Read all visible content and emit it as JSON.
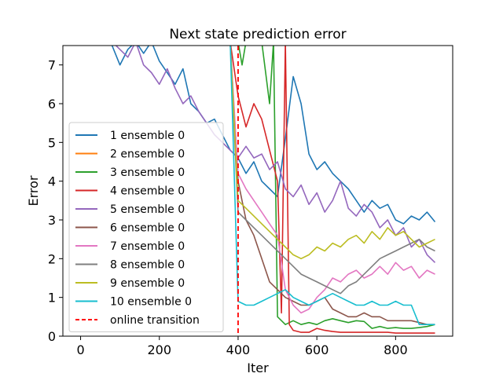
{
  "chart_data": {
    "type": "line",
    "title": "Next state prediction error",
    "xlabel": "Iter",
    "ylabel": "Error",
    "xlim": [
      -45,
      945
    ],
    "ylim": [
      0,
      7.5
    ],
    "xticks": [
      0,
      200,
      400,
      600,
      800
    ],
    "yticks": [
      0,
      1,
      2,
      3,
      4,
      5,
      6,
      7
    ],
    "grid": false,
    "legend_position": "left",
    "series": [
      {
        "name": "1 ensemble 0",
        "color": "#1f77b4",
        "x": [
          0,
          20,
          40,
          60,
          80,
          100,
          120,
          140,
          160,
          180,
          200,
          220,
          240,
          260,
          280,
          300,
          320,
          340,
          360,
          380,
          400,
          420,
          440,
          460,
          480,
          500,
          520,
          540,
          560,
          580,
          600,
          620,
          640,
          660,
          680,
          700,
          720,
          740,
          760,
          780,
          800,
          820,
          840,
          860,
          880,
          900
        ],
        "y": [
          7.6,
          7.6,
          7.6,
          7.6,
          7.5,
          7.0,
          7.4,
          7.6,
          7.3,
          7.6,
          7.1,
          6.8,
          6.5,
          6.9,
          6.0,
          5.8,
          5.5,
          5.6,
          5.2,
          4.8,
          4.6,
          4.2,
          4.5,
          4.0,
          3.8,
          3.6,
          5.1,
          6.7,
          6.0,
          4.7,
          4.3,
          4.5,
          4.2,
          4.0,
          3.8,
          3.5,
          3.2,
          3.5,
          3.3,
          3.4,
          3.0,
          2.9,
          3.1,
          3.0,
          3.2,
          2.95
        ]
      },
      {
        "name": "2 ensemble 0",
        "color": "#ff7f0e",
        "x": [
          0,
          20,
          40,
          60,
          80,
          100,
          120,
          140,
          160,
          180,
          200,
          220,
          240,
          260,
          280,
          300,
          320,
          340,
          360,
          380,
          400,
          420,
          440,
          460,
          480,
          500,
          520,
          540,
          560,
          580,
          600,
          620,
          640,
          660,
          680,
          700,
          720,
          740,
          760,
          780,
          800,
          820,
          840,
          860,
          880,
          900
        ],
        "y": [
          7.6,
          7.6,
          7.6,
          7.6,
          7.6,
          7.6,
          7.6,
          7.6,
          7.6,
          7.6,
          7.6,
          7.6,
          7.6,
          7.6,
          7.6,
          7.6,
          7.6,
          7.6,
          7.6,
          7.6,
          7.6,
          7.6,
          7.6,
          7.6,
          7.6,
          7.6,
          7.6,
          7.6,
          7.6,
          7.6,
          7.6,
          7.6,
          7.6,
          7.6,
          7.6,
          7.6,
          7.6,
          7.6,
          7.6,
          7.6,
          7.6,
          7.6,
          7.6,
          7.6,
          7.6,
          7.6
        ]
      },
      {
        "name": "3 ensemble 0",
        "color": "#2ca02c",
        "x": [
          0,
          20,
          40,
          60,
          80,
          100,
          120,
          140,
          160,
          180,
          200,
          220,
          240,
          260,
          280,
          300,
          320,
          340,
          360,
          380,
          400,
          410,
          420,
          440,
          460,
          470,
          480,
          490,
          500,
          520,
          540,
          560,
          580,
          600,
          620,
          640,
          660,
          680,
          700,
          720,
          740,
          760,
          780,
          800,
          820,
          840,
          860,
          880,
          900
        ],
        "y": [
          7.6,
          7.6,
          7.6,
          7.6,
          7.6,
          7.6,
          7.6,
          7.6,
          7.6,
          7.6,
          7.6,
          7.6,
          7.6,
          7.6,
          7.6,
          7.6,
          7.6,
          7.6,
          7.6,
          7.6,
          7.6,
          7.0,
          7.6,
          7.6,
          7.6,
          6.8,
          6.0,
          7.6,
          0.5,
          0.3,
          0.4,
          0.3,
          0.35,
          0.3,
          0.4,
          0.45,
          0.4,
          0.35,
          0.4,
          0.38,
          0.2,
          0.25,
          0.2,
          0.22,
          0.2,
          0.2,
          0.22,
          0.25,
          0.3
        ]
      },
      {
        "name": "4 ensemble 0",
        "color": "#d62728",
        "x": [
          0,
          20,
          40,
          60,
          80,
          100,
          120,
          140,
          160,
          180,
          200,
          220,
          240,
          260,
          280,
          300,
          320,
          340,
          360,
          380,
          400,
          410,
          420,
          440,
          460,
          480,
          500,
          510,
          520,
          530,
          540,
          560,
          580,
          600,
          620,
          640,
          660,
          680,
          700,
          720,
          740,
          760,
          780,
          800,
          820,
          840,
          860,
          880,
          900
        ],
        "y": [
          7.6,
          7.6,
          7.6,
          7.6,
          7.6,
          7.6,
          7.6,
          7.6,
          7.6,
          7.6,
          7.6,
          7.6,
          7.6,
          7.6,
          7.6,
          7.6,
          7.6,
          7.6,
          7.6,
          7.6,
          6.2,
          5.8,
          5.4,
          6.0,
          5.6,
          4.8,
          4.0,
          0.6,
          7.6,
          0.3,
          0.15,
          0.1,
          0.1,
          0.2,
          0.15,
          0.12,
          0.1,
          0.1,
          0.1,
          0.1,
          0.1,
          0.1,
          0.1,
          0.08,
          0.08,
          0.08,
          0.08,
          0.08,
          0.08
        ]
      },
      {
        "name": "5 ensemble 0",
        "color": "#9467bd",
        "x": [
          0,
          20,
          40,
          60,
          80,
          100,
          120,
          140,
          160,
          180,
          200,
          220,
          240,
          260,
          280,
          300,
          320,
          340,
          360,
          380,
          400,
          420,
          440,
          460,
          480,
          500,
          520,
          540,
          560,
          580,
          600,
          620,
          640,
          660,
          680,
          700,
          720,
          740,
          760,
          780,
          800,
          820,
          840,
          860,
          880,
          900
        ],
        "y": [
          7.6,
          7.6,
          7.6,
          7.6,
          7.6,
          7.4,
          7.2,
          7.6,
          7.0,
          6.8,
          6.5,
          6.9,
          6.4,
          6.0,
          6.2,
          5.8,
          5.5,
          5.2,
          5.0,
          4.8,
          4.6,
          4.9,
          4.6,
          4.7,
          4.3,
          4.5,
          3.8,
          3.6,
          3.9,
          3.4,
          3.7,
          3.2,
          3.5,
          4.0,
          3.3,
          3.1,
          3.4,
          3.2,
          2.8,
          3.0,
          2.6,
          2.8,
          2.3,
          2.5,
          2.1,
          1.9
        ]
      },
      {
        "name": "6 ensemble 0",
        "color": "#8c564b",
        "x": [
          0,
          20,
          40,
          60,
          80,
          100,
          120,
          140,
          160,
          180,
          200,
          220,
          240,
          260,
          280,
          300,
          320,
          340,
          360,
          380,
          400,
          420,
          440,
          460,
          480,
          500,
          520,
          540,
          560,
          580,
          600,
          620,
          640,
          660,
          680,
          700,
          720,
          740,
          760,
          780,
          800,
          820,
          840,
          860,
          880,
          900
        ],
        "y": [
          7.6,
          7.6,
          7.6,
          7.6,
          7.6,
          7.6,
          7.6,
          7.6,
          7.6,
          7.6,
          7.6,
          7.6,
          7.6,
          7.6,
          7.6,
          7.6,
          7.6,
          7.6,
          7.6,
          7.6,
          4.0,
          3.0,
          2.6,
          2.0,
          1.4,
          1.2,
          1.0,
          0.9,
          0.8,
          0.8,
          0.9,
          1.0,
          0.7,
          0.6,
          0.5,
          0.5,
          0.6,
          0.5,
          0.5,
          0.4,
          0.4,
          0.4,
          0.4,
          0.35,
          0.3,
          0.3
        ]
      },
      {
        "name": "7 ensemble 0",
        "color": "#e377c2",
        "x": [
          0,
          20,
          40,
          60,
          80,
          100,
          120,
          140,
          160,
          180,
          200,
          220,
          240,
          260,
          280,
          300,
          320,
          340,
          360,
          380,
          400,
          420,
          440,
          460,
          480,
          500,
          520,
          540,
          560,
          580,
          600,
          620,
          640,
          660,
          680,
          700,
          720,
          740,
          760,
          780,
          800,
          820,
          840,
          860,
          880,
          900
        ],
        "y": [
          7.6,
          7.6,
          7.6,
          7.6,
          7.6,
          7.6,
          7.6,
          7.6,
          7.6,
          7.6,
          7.6,
          7.6,
          7.6,
          7.6,
          7.6,
          7.6,
          7.6,
          7.6,
          7.6,
          7.6,
          4.2,
          3.8,
          3.5,
          3.2,
          2.9,
          2.6,
          1.2,
          0.8,
          0.6,
          0.7,
          1.0,
          1.2,
          1.5,
          1.4,
          1.6,
          1.7,
          1.5,
          1.6,
          1.8,
          1.6,
          1.9,
          1.7,
          1.8,
          1.5,
          1.7,
          1.6
        ]
      },
      {
        "name": "8 ensemble 0",
        "color": "#7f7f7f",
        "x": [
          0,
          20,
          40,
          60,
          80,
          100,
          120,
          140,
          160,
          180,
          200,
          220,
          240,
          260,
          280,
          300,
          320,
          340,
          360,
          380,
          400,
          420,
          440,
          460,
          480,
          500,
          520,
          540,
          560,
          580,
          600,
          620,
          640,
          660,
          680,
          700,
          720,
          740,
          760,
          780,
          800,
          820,
          840,
          860,
          880,
          900
        ],
        "y": [
          7.6,
          7.6,
          7.6,
          7.6,
          7.6,
          7.6,
          7.6,
          7.6,
          7.6,
          7.6,
          7.6,
          7.6,
          7.6,
          7.6,
          7.6,
          7.6,
          7.6,
          7.6,
          7.6,
          7.6,
          3.2,
          3.0,
          2.8,
          2.6,
          2.4,
          2.2,
          2.0,
          1.8,
          1.6,
          1.5,
          1.4,
          1.3,
          1.2,
          1.1,
          1.3,
          1.4,
          1.6,
          1.8,
          2.0,
          2.1,
          2.2,
          2.3,
          2.4,
          2.5,
          2.3,
          2.2
        ]
      },
      {
        "name": "9 ensemble 0",
        "color": "#bcbd22",
        "x": [
          0,
          20,
          40,
          60,
          80,
          100,
          120,
          140,
          160,
          180,
          200,
          220,
          240,
          260,
          280,
          300,
          320,
          340,
          360,
          380,
          400,
          420,
          440,
          460,
          480,
          500,
          520,
          540,
          560,
          580,
          600,
          620,
          640,
          660,
          680,
          700,
          720,
          740,
          760,
          780,
          800,
          820,
          840,
          860,
          880,
          900
        ],
        "y": [
          7.6,
          7.6,
          7.6,
          7.6,
          7.6,
          7.6,
          7.6,
          7.6,
          7.6,
          7.6,
          7.6,
          7.6,
          7.6,
          7.6,
          7.6,
          7.6,
          7.6,
          7.6,
          7.6,
          7.6,
          3.5,
          3.3,
          3.1,
          2.9,
          2.7,
          2.5,
          2.3,
          2.1,
          2.0,
          2.1,
          2.3,
          2.2,
          2.4,
          2.3,
          2.5,
          2.6,
          2.4,
          2.7,
          2.5,
          2.8,
          2.6,
          2.7,
          2.5,
          2.3,
          2.4,
          2.5
        ]
      },
      {
        "name": "10 ensemble 0",
        "color": "#17becf",
        "x": [
          0,
          20,
          40,
          60,
          80,
          100,
          120,
          140,
          160,
          180,
          200,
          220,
          240,
          260,
          280,
          300,
          320,
          340,
          360,
          380,
          400,
          420,
          440,
          460,
          480,
          500,
          520,
          540,
          560,
          580,
          600,
          620,
          640,
          660,
          680,
          700,
          720,
          740,
          760,
          780,
          800,
          820,
          840,
          860,
          880,
          900
        ],
        "y": [
          7.6,
          7.6,
          7.6,
          7.6,
          7.6,
          7.6,
          7.6,
          7.6,
          7.6,
          7.6,
          7.6,
          7.6,
          7.6,
          7.6,
          7.6,
          7.6,
          7.6,
          7.6,
          7.6,
          7.6,
          0.9,
          0.8,
          0.8,
          0.9,
          1.0,
          1.1,
          1.2,
          1.0,
          0.9,
          0.8,
          0.9,
          1.0,
          1.1,
          1.0,
          0.9,
          0.8,
          0.8,
          0.9,
          0.8,
          0.8,
          0.9,
          0.8,
          0.8,
          0.3,
          0.3,
          0.3
        ]
      }
    ],
    "vlines": [
      {
        "name": "online transition",
        "x": 400,
        "color": "#ff0000",
        "dash": true
      }
    ],
    "legend": [
      {
        "label": "1 ensemble 0",
        "color": "#1f77b4",
        "dash": false
      },
      {
        "label": "2 ensemble 0",
        "color": "#ff7f0e",
        "dash": false
      },
      {
        "label": "3 ensemble 0",
        "color": "#2ca02c",
        "dash": false
      },
      {
        "label": "4 ensemble 0",
        "color": "#d62728",
        "dash": false
      },
      {
        "label": "5 ensemble 0",
        "color": "#9467bd",
        "dash": false
      },
      {
        "label": "6 ensemble 0",
        "color": "#8c564b",
        "dash": false
      },
      {
        "label": "7 ensemble 0",
        "color": "#e377c2",
        "dash": false
      },
      {
        "label": "8 ensemble 0",
        "color": "#7f7f7f",
        "dash": false
      },
      {
        "label": "9 ensemble 0",
        "color": "#bcbd22",
        "dash": false
      },
      {
        "label": "10 ensemble 0",
        "color": "#17becf",
        "dash": false
      },
      {
        "label": "online transition",
        "color": "#ff0000",
        "dash": true
      }
    ]
  }
}
